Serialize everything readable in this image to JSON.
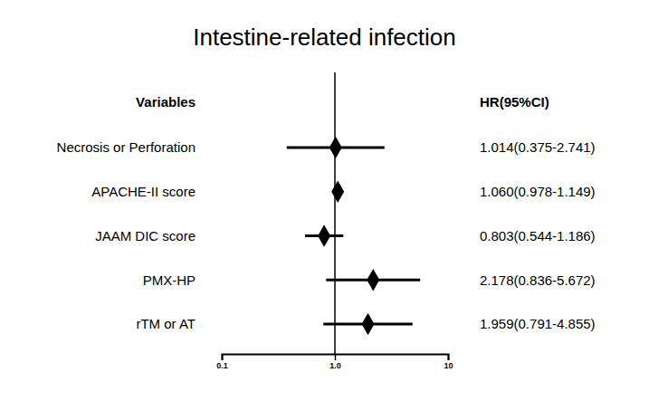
{
  "chart_data": {
    "type": "forest",
    "title": "Intestine-related infection",
    "label_header": "Variables",
    "value_header": "HR(95%CI)",
    "categories": [
      "Necrosis or Perforation",
      "APACHE-II score",
      "JAAM DIC score",
      "PMX-HP",
      "rTM or AT"
    ],
    "values": [
      1.014,
      1.06,
      0.803,
      2.178,
      1.959
    ],
    "ci_lower": [
      0.375,
      0.978,
      0.544,
      0.836,
      0.791
    ],
    "ci_upper": [
      2.741,
      1.149,
      1.186,
      5.672,
      4.855
    ],
    "value_labels": [
      "1.014(0.375-2.741)",
      "1.060(0.978-1.149)",
      "0.803(0.544-1.186)",
      "2.178(0.836-5.672)",
      "1.959(0.791-4.855)"
    ],
    "reference_line": 1,
    "xlim": [
      0.1,
      10
    ],
    "xticks": [
      0.1,
      {
        "value": 1,
        "label": "1.0"
      },
      10
    ],
    "log": "x",
    "color": "#000000"
  }
}
